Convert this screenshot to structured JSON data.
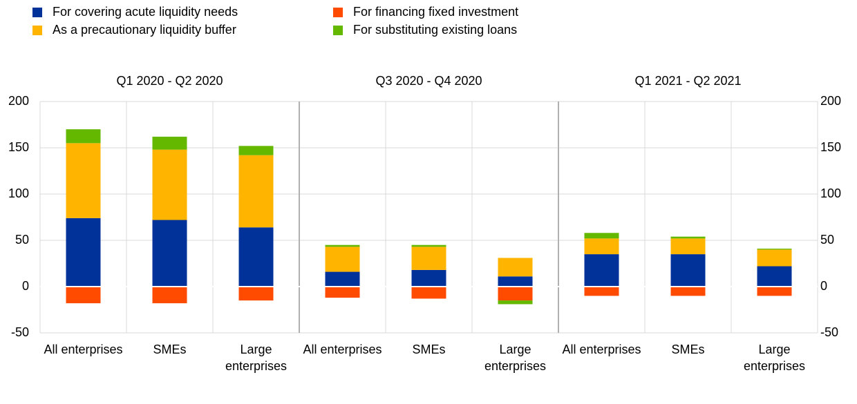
{
  "chart_data": {
    "type": "stacked-bar",
    "groups": [
      "Q1 2020 - Q2 2020",
      "Q3 2020 - Q4 2020",
      "Q1 2021 - Q2 2021"
    ],
    "categories": [
      "All enterprises",
      "SMEs",
      "Large enterprises",
      "All enterprises",
      "SMEs",
      "Large enterprises",
      "All enterprises",
      "SMEs",
      "Large enterprises"
    ],
    "series": [
      {
        "name": "For covering acute liquidity needs",
        "color": "#003299",
        "values": [
          74,
          72,
          64,
          16,
          18,
          11,
          35,
          35,
          22
        ]
      },
      {
        "name": "As a precautionary liquidity buffer",
        "color": "#ffb400",
        "values": [
          81,
          76,
          78,
          27,
          25,
          20,
          17,
          17,
          18
        ]
      },
      {
        "name": "For financing fixed investment",
        "color": "#ff4b00",
        "values": [
          -18,
          -18,
          -15,
          -12,
          -13,
          -15,
          -10,
          -10,
          -10
        ]
      },
      {
        "name": "For substituting existing loans",
        "color": "#65b800",
        "values": [
          15,
          14,
          10,
          2,
          2,
          -4,
          6,
          2,
          1
        ]
      }
    ],
    "ylim": [
      -50,
      200
    ],
    "yticks": [
      -50,
      0,
      50,
      100,
      150,
      200
    ],
    "grid": true
  }
}
